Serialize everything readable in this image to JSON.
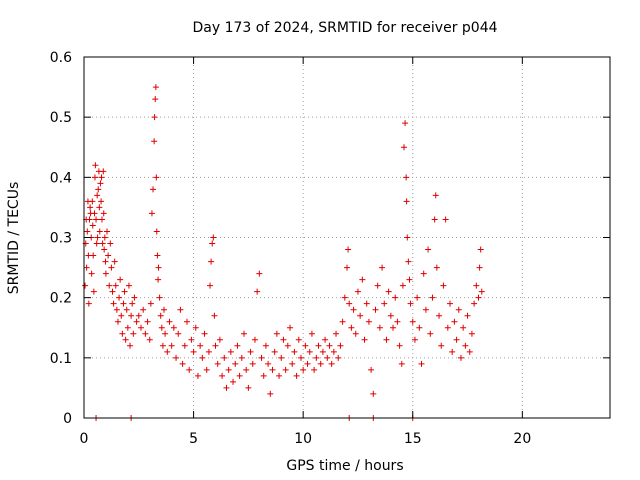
{
  "chart_data": {
    "type": "scatter",
    "title": "Day 173 of 2024, SRMTID for receiver p044",
    "xlabel": "GPS time / hours",
    "ylabel": "SRMTID / TECUs",
    "xlim": [
      0,
      24
    ],
    "ylim": [
      0,
      0.6
    ],
    "xticks": [
      0,
      5,
      10,
      15,
      20
    ],
    "yticks": [
      0,
      0.1,
      0.2,
      0.3,
      0.4,
      0.5,
      0.6
    ],
    "xtick_labels": [
      "0",
      "5",
      "10",
      "15",
      "20"
    ],
    "ytick_labels": [
      "0",
      "0.1",
      "0.2",
      "0.3",
      "0.4",
      "0.5",
      "0.6"
    ],
    "grid": true,
    "marker": "plus",
    "series": [
      {
        "name": "p044",
        "color": "#e00000",
        "points": [
          [
            0.05,
            0.22
          ],
          [
            0.08,
            0.29
          ],
          [
            0.1,
            0.33
          ],
          [
            0.12,
            0.25
          ],
          [
            0.15,
            0.31
          ],
          [
            0.18,
            0.36
          ],
          [
            0.2,
            0.27
          ],
          [
            0.22,
            0.19
          ],
          [
            0.25,
            0.33
          ],
          [
            0.28,
            0.35
          ],
          [
            0.3,
            0.34
          ],
          [
            0.33,
            0.3
          ],
          [
            0.35,
            0.24
          ],
          [
            0.38,
            0.36
          ],
          [
            0.4,
            0.32
          ],
          [
            0.42,
            0.27
          ],
          [
            0.45,
            0.21
          ],
          [
            0.48,
            0.34
          ],
          [
            0.5,
            0.4
          ],
          [
            0.52,
            0.42
          ],
          [
            0.55,
            0.33
          ],
          [
            0.58,
            0.29
          ],
          [
            0.6,
            0.37
          ],
          [
            0.62,
            0.3
          ],
          [
            0.65,
            0.38
          ],
          [
            0.68,
            0.41
          ],
          [
            0.7,
            0.35
          ],
          [
            0.72,
            0.31
          ],
          [
            0.75,
            0.39
          ],
          [
            0.78,
            0.36
          ],
          [
            0.8,
            0.4
          ],
          [
            0.82,
            0.33
          ],
          [
            0.85,
            0.29
          ],
          [
            0.88,
            0.41
          ],
          [
            0.9,
            0.34
          ],
          [
            0.92,
            0.28
          ],
          [
            0.95,
            0.3
          ],
          [
            0.98,
            0.26
          ],
          [
            1.0,
            0.24
          ],
          [
            1.05,
            0.31
          ],
          [
            1.1,
            0.27
          ],
          [
            1.15,
            0.22
          ],
          [
            1.2,
            0.29
          ],
          [
            1.25,
            0.25
          ],
          [
            1.3,
            0.21
          ],
          [
            1.35,
            0.19
          ],
          [
            1.4,
            0.26
          ],
          [
            1.45,
            0.22
          ],
          [
            1.5,
            0.18
          ],
          [
            1.55,
            0.16
          ],
          [
            1.6,
            0.2
          ],
          [
            1.65,
            0.23
          ],
          [
            1.7,
            0.17
          ],
          [
            1.75,
            0.14
          ],
          [
            1.8,
            0.19
          ],
          [
            1.85,
            0.21
          ],
          [
            1.9,
            0.13
          ],
          [
            1.95,
            0.18
          ],
          [
            2.0,
            0.15
          ],
          [
            2.05,
            0.22
          ],
          [
            2.1,
            0.12
          ],
          [
            2.15,
            0.17
          ],
          [
            2.2,
            0.19
          ],
          [
            2.25,
            0.14
          ],
          [
            2.3,
            0.2
          ],
          [
            2.4,
            0.16
          ],
          [
            2.5,
            0.17
          ],
          [
            2.6,
            0.15
          ],
          [
            2.7,
            0.18
          ],
          [
            2.8,
            0.14
          ],
          [
            2.9,
            0.16
          ],
          [
            3.0,
            0.13
          ],
          [
            3.05,
            0.19
          ],
          [
            3.1,
            0.34
          ],
          [
            3.15,
            0.38
          ],
          [
            3.2,
            0.46
          ],
          [
            3.22,
            0.5
          ],
          [
            3.25,
            0.53
          ],
          [
            3.28,
            0.55
          ],
          [
            3.3,
            0.4
          ],
          [
            3.32,
            0.31
          ],
          [
            3.35,
            0.27
          ],
          [
            3.38,
            0.23
          ],
          [
            3.4,
            0.25
          ],
          [
            3.45,
            0.2
          ],
          [
            3.5,
            0.17
          ],
          [
            3.55,
            0.15
          ],
          [
            3.6,
            0.12
          ],
          [
            3.65,
            0.18
          ],
          [
            3.7,
            0.14
          ],
          [
            3.8,
            0.11
          ],
          [
            3.9,
            0.16
          ],
          [
            4.0,
            0.12
          ],
          [
            4.1,
            0.15
          ],
          [
            4.2,
            0.1
          ],
          [
            4.3,
            0.14
          ],
          [
            4.4,
            0.18
          ],
          [
            4.5,
            0.09
          ],
          [
            4.6,
            0.12
          ],
          [
            4.7,
            0.16
          ],
          [
            4.8,
            0.08
          ],
          [
            4.9,
            0.13
          ],
          [
            5.0,
            0.11
          ],
          [
            5.1,
            0.15
          ],
          [
            5.2,
            0.07
          ],
          [
            5.3,
            0.12
          ],
          [
            5.4,
            0.1
          ],
          [
            5.5,
            0.14
          ],
          [
            5.6,
            0.08
          ],
          [
            5.7,
            0.11
          ],
          [
            5.75,
            0.22
          ],
          [
            5.8,
            0.26
          ],
          [
            5.85,
            0.29
          ],
          [
            5.9,
            0.3
          ],
          [
            5.95,
            0.17
          ],
          [
            6.0,
            0.12
          ],
          [
            6.1,
            0.09
          ],
          [
            6.2,
            0.13
          ],
          [
            6.3,
            0.07
          ],
          [
            6.4,
            0.1
          ],
          [
            6.5,
            0.05
          ],
          [
            6.6,
            0.08
          ],
          [
            6.7,
            0.11
          ],
          [
            6.8,
            0.06
          ],
          [
            6.9,
            0.09
          ],
          [
            7.0,
            0.12
          ],
          [
            7.1,
            0.07
          ],
          [
            7.2,
            0.1
          ],
          [
            7.3,
            0.14
          ],
          [
            7.4,
            0.08
          ],
          [
            7.5,
            0.05
          ],
          [
            7.6,
            0.11
          ],
          [
            7.7,
            0.09
          ],
          [
            7.8,
            0.13
          ],
          [
            7.9,
            0.21
          ],
          [
            8.0,
            0.24
          ],
          [
            8.1,
            0.1
          ],
          [
            8.2,
            0.07
          ],
          [
            8.3,
            0.12
          ],
          [
            8.4,
            0.09
          ],
          [
            8.5,
            0.04
          ],
          [
            8.6,
            0.08
          ],
          [
            8.7,
            0.11
          ],
          [
            8.8,
            0.14
          ],
          [
            8.9,
            0.07
          ],
          [
            9.0,
            0.1
          ],
          [
            9.1,
            0.13
          ],
          [
            9.2,
            0.08
          ],
          [
            9.3,
            0.12
          ],
          [
            9.4,
            0.15
          ],
          [
            9.5,
            0.09
          ],
          [
            9.6,
            0.11
          ],
          [
            9.7,
            0.07
          ],
          [
            9.8,
            0.13
          ],
          [
            9.9,
            0.1
          ],
          [
            10.0,
            0.08
          ],
          [
            10.1,
            0.12
          ],
          [
            10.2,
            0.09
          ],
          [
            10.3,
            0.11
          ],
          [
            10.4,
            0.14
          ],
          [
            10.5,
            0.08
          ],
          [
            10.6,
            0.1
          ],
          [
            10.7,
            0.12
          ],
          [
            10.8,
            0.09
          ],
          [
            10.9,
            0.11
          ],
          [
            11.0,
            0.13
          ],
          [
            11.1,
            0.1
          ],
          [
            11.2,
            0.12
          ],
          [
            11.3,
            0.09
          ],
          [
            11.4,
            0.11
          ],
          [
            11.5,
            0.14
          ],
          [
            11.6,
            0.1
          ],
          [
            11.7,
            0.12
          ],
          [
            11.8,
            0.16
          ],
          [
            11.9,
            0.2
          ],
          [
            12.0,
            0.25
          ],
          [
            12.05,
            0.28
          ],
          [
            12.1,
            0.19
          ],
          [
            12.2,
            0.15
          ],
          [
            12.3,
            0.18
          ],
          [
            12.4,
            0.14
          ],
          [
            12.5,
            0.21
          ],
          [
            12.6,
            0.17
          ],
          [
            12.7,
            0.23
          ],
          [
            12.8,
            0.13
          ],
          [
            12.9,
            0.19
          ],
          [
            13.0,
            0.16
          ],
          [
            13.1,
            0.08
          ],
          [
            13.2,
            0.04
          ],
          [
            13.3,
            0.18
          ],
          [
            13.4,
            0.22
          ],
          [
            13.5,
            0.15
          ],
          [
            13.6,
            0.25
          ],
          [
            13.7,
            0.19
          ],
          [
            13.8,
            0.13
          ],
          [
            13.9,
            0.21
          ],
          [
            14.0,
            0.17
          ],
          [
            14.1,
            0.15
          ],
          [
            14.2,
            0.2
          ],
          [
            14.3,
            0.16
          ],
          [
            14.4,
            0.12
          ],
          [
            14.5,
            0.09
          ],
          [
            14.55,
            0.22
          ],
          [
            14.6,
            0.45
          ],
          [
            14.65,
            0.49
          ],
          [
            14.7,
            0.4
          ],
          [
            14.72,
            0.36
          ],
          [
            14.75,
            0.3
          ],
          [
            14.8,
            0.26
          ],
          [
            14.85,
            0.23
          ],
          [
            14.9,
            0.19
          ],
          [
            15.0,
            0.16
          ],
          [
            15.1,
            0.13
          ],
          [
            15.2,
            0.2
          ],
          [
            15.3,
            0.15
          ],
          [
            15.4,
            0.09
          ],
          [
            15.5,
            0.24
          ],
          [
            15.6,
            0.18
          ],
          [
            15.7,
            0.28
          ],
          [
            15.8,
            0.14
          ],
          [
            15.9,
            0.2
          ],
          [
            16.0,
            0.33
          ],
          [
            16.05,
            0.37
          ],
          [
            16.1,
            0.25
          ],
          [
            16.2,
            0.17
          ],
          [
            16.3,
            0.12
          ],
          [
            16.4,
            0.22
          ],
          [
            16.5,
            0.33
          ],
          [
            16.6,
            0.15
          ],
          [
            16.7,
            0.19
          ],
          [
            16.8,
            0.11
          ],
          [
            16.9,
            0.16
          ],
          [
            17.0,
            0.13
          ],
          [
            17.1,
            0.18
          ],
          [
            17.2,
            0.1
          ],
          [
            17.3,
            0.15
          ],
          [
            17.4,
            0.12
          ],
          [
            17.5,
            0.17
          ],
          [
            17.6,
            0.11
          ],
          [
            17.7,
            0.14
          ],
          [
            17.8,
            0.19
          ],
          [
            17.9,
            0.22
          ],
          [
            18.0,
            0.2
          ],
          [
            18.05,
            0.25
          ],
          [
            18.1,
            0.28
          ],
          [
            18.15,
            0.21
          ],
          [
            0.55,
            0.0
          ],
          [
            2.15,
            0.0
          ],
          [
            12.1,
            0.0
          ],
          [
            13.2,
            0.0
          ],
          [
            15.0,
            0.0
          ]
        ]
      }
    ]
  }
}
